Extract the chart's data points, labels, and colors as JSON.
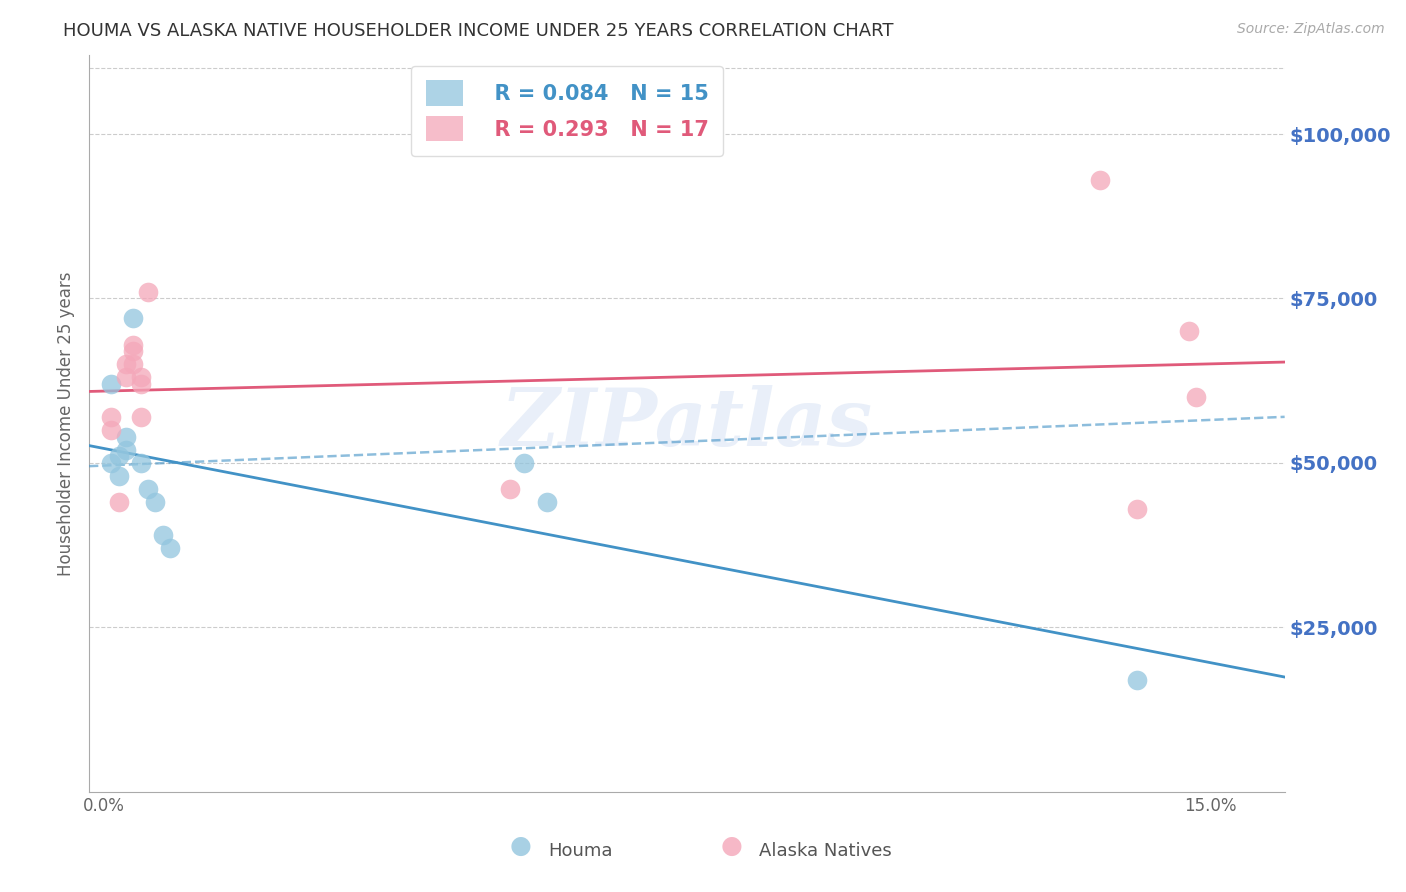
{
  "title": "HOUMA VS ALASKA NATIVE HOUSEHOLDER INCOME UNDER 25 YEARS CORRELATION CHART",
  "source": "Source: ZipAtlas.com",
  "ylabel": "Householder Income Under 25 years",
  "ytick_values": [
    25000,
    50000,
    75000,
    100000
  ],
  "ylim": [
    0,
    112000
  ],
  "xlim": [
    -0.002,
    0.16
  ],
  "watermark": "ZIPatlas",
  "houma_x": [
    0.001,
    0.001,
    0.002,
    0.002,
    0.003,
    0.003,
    0.004,
    0.005,
    0.006,
    0.007,
    0.008,
    0.009,
    0.057,
    0.06,
    0.14
  ],
  "houma_y": [
    50000,
    62000,
    48000,
    51000,
    54000,
    52000,
    72000,
    50000,
    46000,
    44000,
    39000,
    37000,
    50000,
    44000,
    17000
  ],
  "alaska_x": [
    0.001,
    0.001,
    0.002,
    0.003,
    0.003,
    0.004,
    0.004,
    0.004,
    0.005,
    0.005,
    0.005,
    0.006,
    0.055,
    0.135,
    0.14,
    0.147,
    0.148
  ],
  "alaska_y": [
    55000,
    57000,
    44000,
    63000,
    65000,
    67000,
    65000,
    68000,
    57000,
    63000,
    62000,
    76000,
    46000,
    93000,
    43000,
    70000,
    60000
  ],
  "houma_color": "#92c5de",
  "alaska_color": "#f4a7b9",
  "houma_line_color": "#4292c6",
  "alaska_line_color": "#e05a7a",
  "houma_R": 0.084,
  "houma_N": 15,
  "alaska_R": 0.293,
  "alaska_N": 17,
  "legend_label_houma": "Houma",
  "legend_label_alaska": "Alaska Natives",
  "title_color": "#333333",
  "axis_label_color": "#4472c4",
  "gridline_color": "#cccccc"
}
